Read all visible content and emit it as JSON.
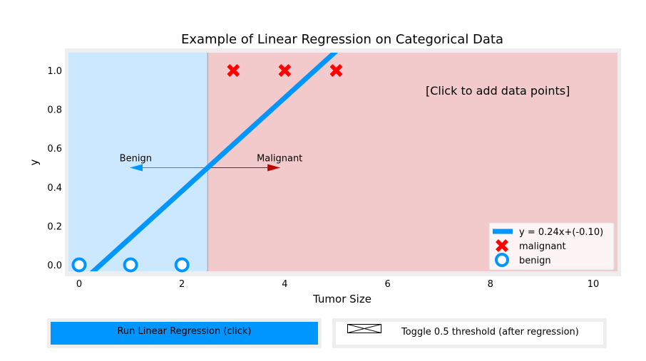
{
  "chart_data": {
    "type": "scatter",
    "title": "Example of Linear Regression on Categorical Data",
    "xlabel": "Tumor Size",
    "ylabel": "y",
    "xlim": [
      -0.2,
      10.5
    ],
    "ylim": [
      -0.05,
      1.1
    ],
    "xticks": [
      0,
      2,
      4,
      6,
      8,
      10
    ],
    "yticks": [
      0.0,
      0.2,
      0.4,
      0.6,
      0.8,
      1.0
    ],
    "threshold_x": 2.5,
    "regions": {
      "benign_color": "#cce8ff",
      "malignant_color": "#f2cacb"
    },
    "series": [
      {
        "name": "y = 0.24x+(-0.10)",
        "kind": "line",
        "slope": 0.24,
        "intercept": -0.1,
        "color": "#0096ff"
      },
      {
        "name": "malignant",
        "kind": "scatter",
        "marker": "x",
        "color": "#ff0000",
        "x": [
          3,
          4,
          5
        ],
        "y": [
          1,
          1,
          1
        ]
      },
      {
        "name": "benign",
        "kind": "scatter",
        "marker": "o",
        "color": "#0096ff",
        "x": [
          0,
          1,
          2
        ],
        "y": [
          0,
          0,
          0
        ]
      }
    ],
    "annotations": [
      {
        "text": "Benign",
        "arrow_from": 2.5,
        "arrow_to": 1.0,
        "y": 0.5,
        "color": "#0096ff"
      },
      {
        "text": "Malignant",
        "arrow_from": 2.5,
        "arrow_to": 3.9,
        "y": 0.5,
        "color": "#c00000"
      },
      {
        "text": "[Click to add data points]"
      }
    ],
    "legend_position": "lower-right",
    "grid": false
  },
  "controls": {
    "run_label": "Run Linear Regression (click)",
    "toggle_label": "Toggle 0.5 threshold (after regression)"
  }
}
